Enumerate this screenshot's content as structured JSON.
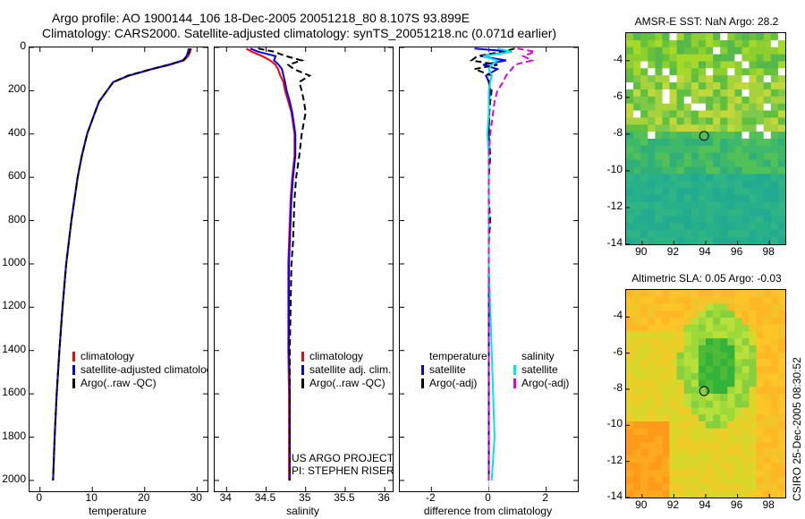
{
  "header": {
    "line1": "Argo profile: AO 1900144_106 18-Dec-2005 20051218_80 8.107S 93.899E",
    "line2": "Climatology: CARS2000. Satellite-adjusted climatology: synTS_20051218.nc (0.071d earlier)"
  },
  "colors": {
    "climatology": "#ff0000",
    "satellite": "#0000ff",
    "argo": "#000000",
    "sat_salinity": "#00e5e5",
    "argo_salinity_adj": "#e000e0"
  },
  "credit": {
    "line1": "US ARGO PROJECT",
    "line2": "PI: STEPHEN RISER"
  },
  "side_label": "CSIRO 25-Dec-2005 08:30:52",
  "chart_data": [
    {
      "type": "line",
      "id": "temperature",
      "xlabel": "temperature",
      "ylabel": "",
      "xlim": [
        -2,
        32
      ],
      "ylim": [
        2050,
        0
      ],
      "xticks": [
        "0",
        "10",
        "20",
        "30"
      ],
      "yticks": [
        "0",
        "200",
        "400",
        "600",
        "800",
        "1000",
        "1200",
        "1400",
        "1600",
        "1800",
        "2000"
      ],
      "legend": [
        "climatology",
        "satellite-adjusted climatology",
        "Argo(..raw -QC)"
      ],
      "depth": [
        5,
        20,
        40,
        60,
        80,
        100,
        130,
        160,
        200,
        250,
        300,
        400,
        500,
        600,
        700,
        800,
        900,
        1000,
        1200,
        1400,
        1600,
        1800,
        2000
      ],
      "series": [
        {
          "name": "climatology",
          "color": "#ff0000",
          "values": [
            28.9,
            28.7,
            28.3,
            27.5,
            24.8,
            21.5,
            17.0,
            14.0,
            12.8,
            11.3,
            10.5,
            9.0,
            8.0,
            7.2,
            6.6,
            6.0,
            5.5,
            5.0,
            4.3,
            3.7,
            3.2,
            2.8,
            2.5
          ]
        },
        {
          "name": "satellite-adjusted climatology",
          "color": "#0000ff",
          "values": [
            28.4,
            28.3,
            28.0,
            27.3,
            24.5,
            21.3,
            17.0,
            14.0,
            12.8,
            11.3,
            10.5,
            9.0,
            8.0,
            7.2,
            6.6,
            6.0,
            5.5,
            5.0,
            4.3,
            3.7,
            3.2,
            2.8,
            2.5
          ]
        },
        {
          "name": "Argo(..raw -QC)",
          "color": "#000000",
          "values": [
            28.7,
            28.5,
            28.2,
            27.3,
            24.6,
            21.3,
            16.8,
            14.0,
            12.8,
            11.3,
            10.5,
            9.0,
            8.0,
            7.2,
            6.6,
            6.0,
            5.5,
            5.0,
            4.3,
            3.7,
            3.2,
            2.8,
            2.5
          ]
        }
      ]
    },
    {
      "type": "line",
      "id": "salinity",
      "xlabel": "salinity",
      "ylabel": "",
      "xlim": [
        33.85,
        36.1
      ],
      "ylim": [
        2050,
        0
      ],
      "xticks": [
        "34",
        "34.5",
        "35",
        "35.5",
        "36"
      ],
      "legend": [
        "climatology",
        "satellite adj. clim.",
        "Argo(..raw -QC)"
      ],
      "depth": [
        5,
        20,
        40,
        60,
        80,
        100,
        130,
        160,
        200,
        250,
        300,
        400,
        500,
        600,
        700,
        800,
        900,
        1000,
        1200,
        1400,
        1600,
        1800,
        2000
      ],
      "series": [
        {
          "name": "climatology",
          "color": "#ff0000",
          "values": [
            34.25,
            34.32,
            34.45,
            34.55,
            34.62,
            34.65,
            34.68,
            34.72,
            34.74,
            34.78,
            34.82,
            34.86,
            34.86,
            34.83,
            34.81,
            34.8,
            34.79,
            34.78,
            34.78,
            34.78,
            34.79,
            34.79,
            34.79
          ]
        },
        {
          "name": "satellite adj. clim.",
          "color": "#0000ff",
          "values": [
            34.3,
            34.4,
            34.62,
            34.6,
            34.66,
            34.7,
            34.72,
            34.74,
            34.76,
            34.8,
            34.83,
            34.87,
            34.87,
            34.84,
            34.82,
            34.81,
            34.8,
            34.79,
            34.79,
            34.79,
            34.8,
            34.8,
            34.8
          ]
        },
        {
          "name": "Argo(..raw -QC)",
          "color": "#000000",
          "values": [
            34.4,
            34.6,
            34.75,
            34.95,
            34.78,
            34.85,
            35.05,
            34.92,
            34.95,
            34.98,
            35.0,
            34.95,
            34.92,
            34.88,
            34.86,
            34.85,
            34.84,
            34.82,
            34.81,
            34.8,
            34.8,
            34.8,
            34.8
          ]
        }
      ]
    },
    {
      "type": "line",
      "id": "difference",
      "xlabel": "difference from climatology",
      "ylabel": "",
      "xlim": [
        -3.1,
        3.1
      ],
      "ylim": [
        2050,
        0
      ],
      "xticks": [
        "-2",
        "0",
        "2"
      ],
      "legend_left": [
        "temperature",
        "satellite",
        "Argo(-adj)"
      ],
      "legend_right": [
        "salinity",
        "satellite",
        "Argo(-adj)"
      ],
      "depth": [
        5,
        20,
        40,
        60,
        80,
        100,
        130,
        160,
        200,
        250,
        300,
        400,
        500,
        600,
        700,
        800,
        900,
        1000,
        1200,
        1400,
        1600,
        1800,
        2000
      ],
      "series": [
        {
          "name": "temperature satellite",
          "color": "#0000ff",
          "values": [
            -0.5,
            0.8,
            -0.3,
            0.6,
            -0.2,
            0.3,
            -0.1,
            0.0,
            0.05,
            0.0,
            0.0,
            0.0,
            0.0,
            0.0,
            0.0,
            0.0,
            0.0,
            0.0,
            0.0,
            0.0,
            0.0,
            0.0,
            0.0
          ]
        },
        {
          "name": "temperature Argo(-adj)",
          "color": "#000000",
          "values": [
            0.9,
            0.5,
            -0.4,
            -0.6,
            0.3,
            -0.5,
            0.1,
            0.0,
            0.1,
            0.05,
            0.02,
            0.0,
            0.05,
            0.0,
            0.0,
            0.05,
            0.0,
            0.0,
            0.0,
            0.0,
            0.0,
            0.0,
            0.0
          ]
        },
        {
          "name": "salinity satellite",
          "color": "#00e5e5",
          "values": [
            0.3,
            0.8,
            -0.2,
            0.3,
            0.1,
            0.0,
            0.1,
            0.05,
            0.0,
            0.0,
            0.0,
            -0.05,
            0.0,
            0.0,
            0.0,
            0.0,
            0.0,
            0.0,
            0.05,
            0.1,
            0.15,
            0.2,
            0.1
          ]
        },
        {
          "name": "salinity Argo(-adj)",
          "color": "#e000e0",
          "values": [
            1.0,
            1.6,
            1.2,
            1.5,
            0.9,
            0.8,
            0.6,
            0.5,
            0.3,
            0.2,
            0.15,
            0.05,
            0.0,
            0.0,
            0.0,
            0.0,
            0.0,
            0.0,
            0.0,
            0.0,
            0.0,
            0.0,
            0.0
          ]
        }
      ]
    },
    {
      "type": "heatmap",
      "id": "sst_map",
      "title": "AMSR-E SST: NaN Argo: 28.2",
      "xlim": [
        89,
        99
      ],
      "ylim": [
        -14,
        -2.5
      ],
      "xticks": [
        "90",
        "92",
        "94",
        "96",
        "98"
      ],
      "yticks": [
        "-4",
        "-6",
        "-8",
        "-10",
        "-12",
        "-14"
      ],
      "marker": {
        "x": 93.9,
        "y": -8.1
      }
    },
    {
      "type": "heatmap",
      "id": "sla_map",
      "title": "Altimetric SLA: 0.05 Argo: -0.03",
      "xlim": [
        89,
        99
      ],
      "ylim": [
        -14,
        -2.5
      ],
      "xticks": [
        "90",
        "92",
        "94",
        "96",
        "98"
      ],
      "yticks": [
        "-4",
        "-6",
        "-8",
        "-10",
        "-12",
        "-14"
      ],
      "marker": {
        "x": 93.9,
        "y": -8.1
      }
    }
  ]
}
